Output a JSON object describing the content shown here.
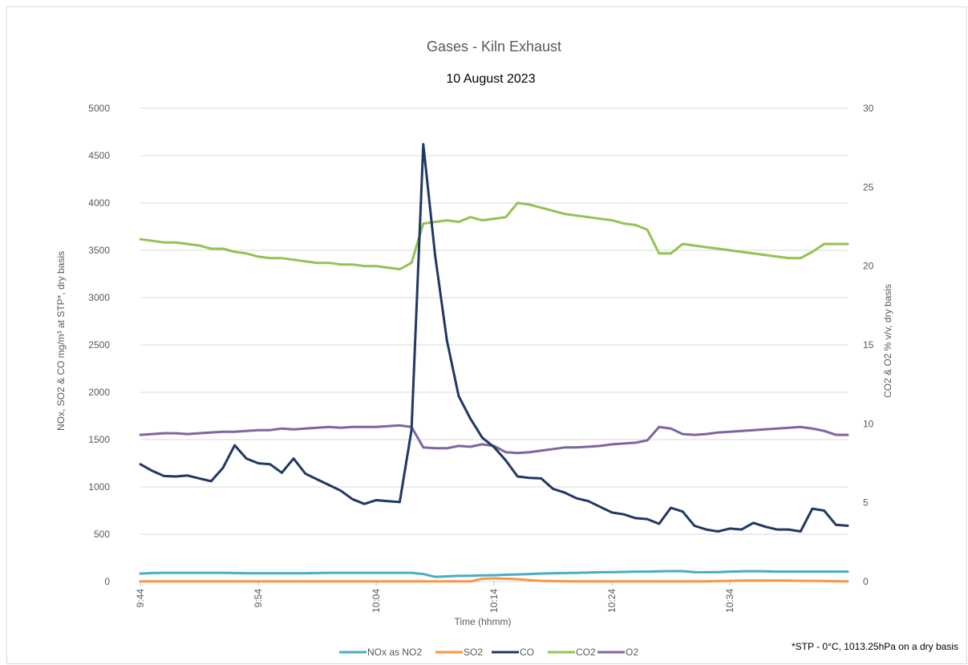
{
  "chart_data": {
    "type": "line",
    "title": "Gases - Kiln Exhaust",
    "subtitle": "10 August 2023",
    "xlabel": "Time (hhmm)",
    "ylabel": "NOx, SO2 & CO mg/m³ at STP*, dry basis",
    "y2label": "CO2 & O2 % v/v, dry basis",
    "ylim": [
      0,
      5000
    ],
    "y2lim": [
      0,
      30
    ],
    "yticks": [
      "0",
      "500",
      "1000",
      "1500",
      "2000",
      "2500",
      "3000",
      "3500",
      "4000",
      "4500",
      "5000"
    ],
    "y2ticks": [
      "0",
      "5",
      "10",
      "15",
      "20",
      "25",
      "30"
    ],
    "xticks": [
      "9:44",
      "9:54",
      "10:04",
      "10:14",
      "10:24",
      "10:34"
    ],
    "x_minutes": [
      0,
      1,
      2,
      3,
      4,
      5,
      6,
      7,
      8,
      9,
      10,
      11,
      12,
      13,
      14,
      15,
      16,
      17,
      18,
      19,
      20,
      21,
      22,
      23,
      24,
      25,
      26,
      27,
      28,
      29,
      30,
      31,
      32,
      33,
      34,
      35,
      36,
      37,
      38,
      39,
      40,
      41,
      42,
      43,
      44,
      45,
      46,
      47,
      48,
      49,
      50,
      51,
      52,
      53,
      54,
      55,
      56,
      57,
      58,
      59,
      60
    ],
    "legend_position": "bottom",
    "grid": true,
    "series": [
      {
        "name": "NOx as NO2",
        "axis": "left",
        "color": "#4bacc6",
        "values": [
          85,
          90,
          92,
          92,
          92,
          92,
          92,
          92,
          90,
          88,
          88,
          88,
          88,
          88,
          88,
          90,
          92,
          92,
          92,
          92,
          92,
          92,
          92,
          92,
          80,
          50,
          55,
          60,
          62,
          65,
          68,
          72,
          75,
          80,
          85,
          88,
          90,
          92,
          95,
          98,
          100,
          102,
          105,
          105,
          108,
          110,
          110,
          100,
          98,
          100,
          105,
          108,
          110,
          108,
          105,
          105,
          105,
          105,
          105,
          105,
          105
        ]
      },
      {
        "name": "SO2",
        "axis": "left",
        "color": "#f79646",
        "values": [
          2,
          2,
          2,
          2,
          2,
          2,
          2,
          2,
          2,
          2,
          2,
          2,
          2,
          2,
          2,
          2,
          2,
          2,
          2,
          2,
          2,
          2,
          2,
          2,
          2,
          2,
          2,
          2,
          2,
          30,
          35,
          30,
          25,
          15,
          8,
          5,
          3,
          2,
          2,
          2,
          2,
          2,
          2,
          2,
          2,
          2,
          2,
          2,
          2,
          5,
          8,
          10,
          12,
          10,
          10,
          10,
          8,
          8,
          5,
          3,
          2
        ]
      },
      {
        "name": "CO",
        "axis": "left",
        "color": "#1f3864",
        "values": [
          1240,
          1170,
          1115,
          1110,
          1120,
          1090,
          1060,
          1200,
          1440,
          1300,
          1250,
          1240,
          1150,
          1300,
          1140,
          1080,
          1020,
          960,
          870,
          820,
          860,
          850,
          840,
          1600,
          4620,
          3450,
          2550,
          1960,
          1720,
          1520,
          1420,
          1280,
          1110,
          1095,
          1090,
          980,
          940,
          880,
          850,
          790,
          730,
          710,
          670,
          660,
          610,
          780,
          740,
          590,
          550,
          530,
          560,
          550,
          620,
          580,
          550,
          550,
          530,
          770,
          750,
          600,
          590
        ]
      },
      {
        "name": "CO2",
        "axis": "right",
        "color": "#92c353",
        "values": [
          21.7,
          21.6,
          21.5,
          21.5,
          21.4,
          21.3,
          21.1,
          21.1,
          20.9,
          20.8,
          20.6,
          20.5,
          20.5,
          20.4,
          20.3,
          20.2,
          20.2,
          20.1,
          20.1,
          20.0,
          20.0,
          19.9,
          19.8,
          20.2,
          22.7,
          22.8,
          22.9,
          22.8,
          23.1,
          22.9,
          23.0,
          23.1,
          24.0,
          23.9,
          23.7,
          23.5,
          23.3,
          23.2,
          23.1,
          23.0,
          22.9,
          22.7,
          22.6,
          22.3,
          20.8,
          20.8,
          21.4,
          21.3,
          21.2,
          21.1,
          21.0,
          20.9,
          20.8,
          20.7,
          20.6,
          20.5,
          20.5,
          20.9,
          21.4,
          21.4,
          21.4
        ]
      },
      {
        "name": "O2",
        "axis": "right",
        "color": "#8064a2",
        "values": [
          9.3,
          9.35,
          9.4,
          9.4,
          9.35,
          9.4,
          9.45,
          9.5,
          9.5,
          9.55,
          9.6,
          9.6,
          9.7,
          9.65,
          9.7,
          9.75,
          9.8,
          9.75,
          9.8,
          9.8,
          9.8,
          9.85,
          9.9,
          9.8,
          8.5,
          8.45,
          8.45,
          8.6,
          8.55,
          8.7,
          8.6,
          8.2,
          8.15,
          8.2,
          8.3,
          8.4,
          8.5,
          8.5,
          8.55,
          8.6,
          8.7,
          8.75,
          8.8,
          8.95,
          9.8,
          9.7,
          9.35,
          9.3,
          9.35,
          9.45,
          9.5,
          9.55,
          9.6,
          9.65,
          9.7,
          9.75,
          9.8,
          9.7,
          9.55,
          9.3,
          9.3
        ]
      }
    ],
    "footnote": "*STP - 0°C, 1013.25hPa on a dry basis"
  }
}
